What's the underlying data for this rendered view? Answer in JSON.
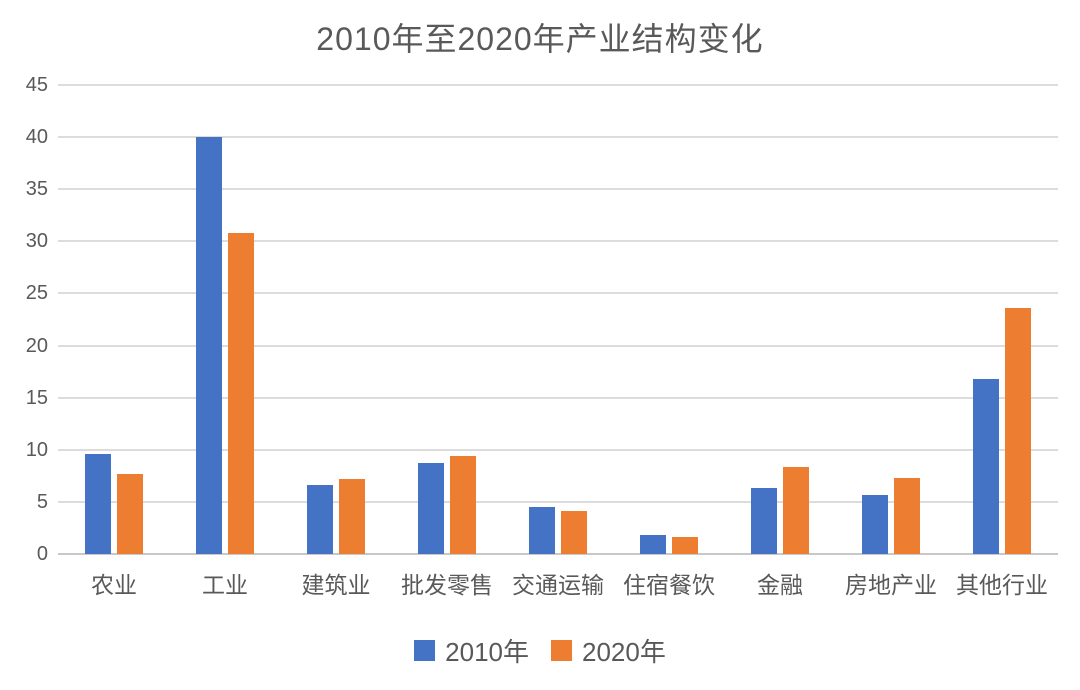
{
  "chart_data": {
    "type": "bar",
    "title": "2010年至2020年产业结构变化",
    "categories": [
      "农业",
      "工业",
      "建筑业",
      "批发零售",
      "交通运输",
      "住宿餐饮",
      "金融",
      "房地产业",
      "其他行业"
    ],
    "series": [
      {
        "name": "2010年",
        "color": "#4472C4",
        "values": [
          9.6,
          40.0,
          6.6,
          8.7,
          4.5,
          1.8,
          6.3,
          5.7,
          16.8
        ]
      },
      {
        "name": "2020年",
        "color": "#ED7D31",
        "values": [
          7.7,
          30.8,
          7.2,
          9.4,
          4.1,
          1.6,
          8.3,
          7.3,
          23.6
        ]
      }
    ],
    "xlabel": "",
    "ylabel": "",
    "ylim": [
      0,
      45
    ],
    "yticks": [
      0,
      5,
      10,
      15,
      20,
      25,
      30,
      35,
      40,
      45
    ],
    "grid": true,
    "legend_position": "bottom"
  },
  "colors": {
    "background": "#FFFFFF",
    "axis_text": "#595959",
    "title_text": "#595959",
    "gridline": "#DCDCDC",
    "baseline": "#C8C8C8"
  }
}
